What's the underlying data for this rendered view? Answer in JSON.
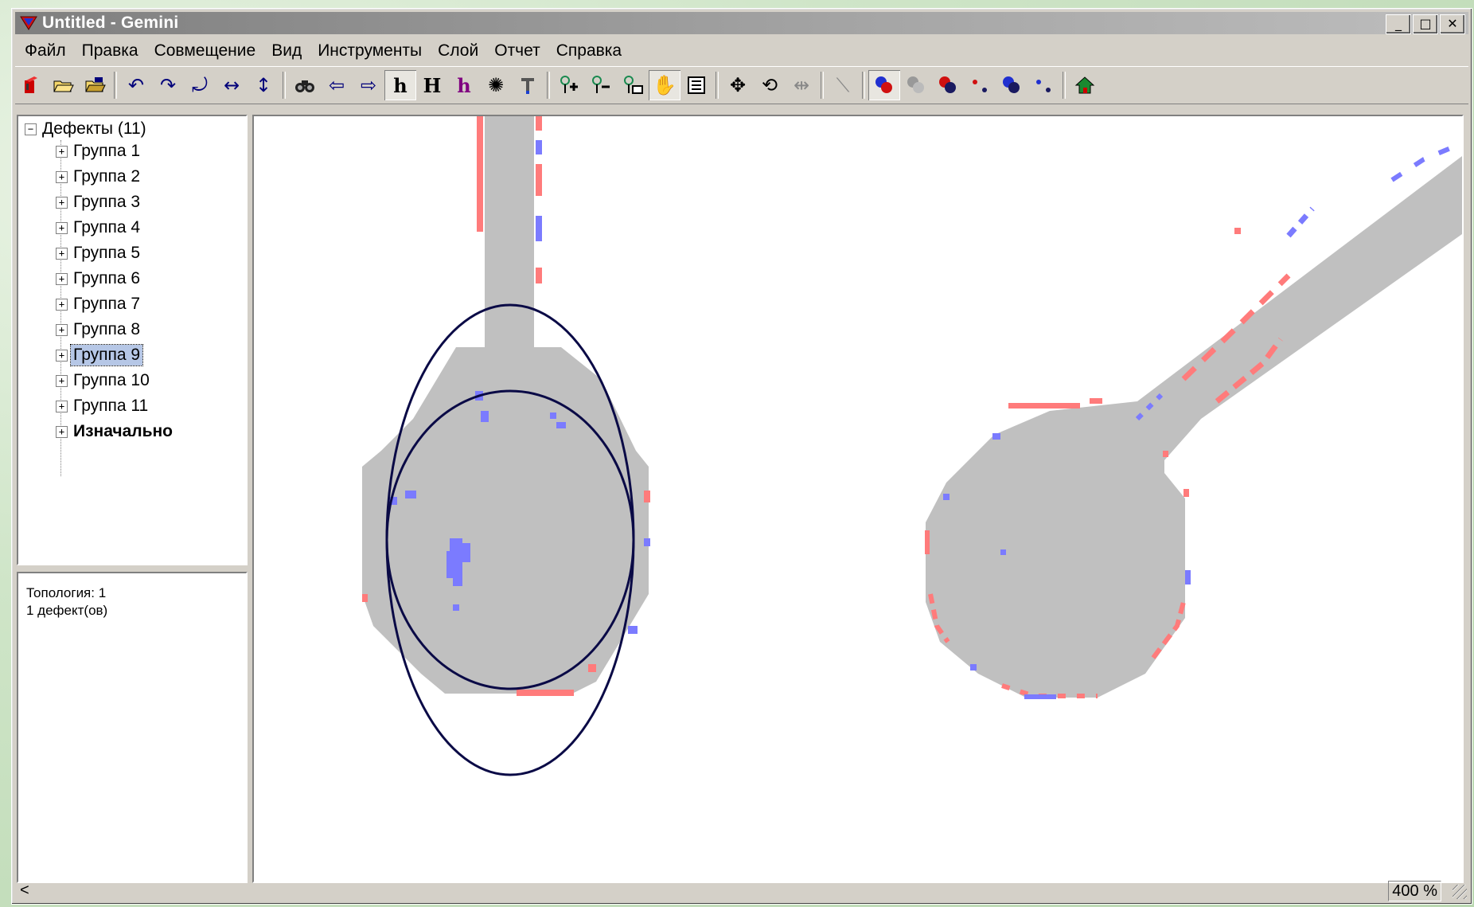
{
  "window": {
    "title": "Untitled - Gemini",
    "app_icon": "gemini-triangle-icon",
    "controls": {
      "minimize": "_",
      "maximize": "□",
      "close": "✕"
    }
  },
  "menu": [
    "Файл",
    "Правка",
    "Совмещение",
    "Вид",
    "Инструменты",
    "Слой",
    "Отчет",
    "Справка"
  ],
  "toolbar": {
    "icons": [
      "open-layout-icon",
      "open-folder-icon",
      "open-folder2-icon",
      "rotate-left-icon",
      "rotate-right-icon",
      "rotate-180-icon",
      "flip-horizontal-icon",
      "flip-vertical-icon",
      "binoculars-icon",
      "arrow-left-icon",
      "arrow-right-icon",
      "h-lower-icon",
      "h-upper-icon",
      "h-purple-icon",
      "sparkle-icon",
      "magnet-icon",
      "pin-add-icon",
      "pin-remove-icon",
      "pin-clear-icon",
      "hand-pan-icon",
      "list-icon",
      "move-icon",
      "rotate-tool-icon",
      "stretch-icon",
      "line-tool-icon",
      "defect-blue-red-icon",
      "defect-gray-icon",
      "defect-red-icon",
      "dots-red-icon",
      "defect-blue-icon",
      "dots-blue-icon",
      "home-icon"
    ],
    "glyphs": {
      "h_lower": "h",
      "h_upper": "H",
      "h_purple": "h"
    }
  },
  "tree": {
    "root": {
      "label": "Дефекты (11)",
      "expander": "−"
    },
    "groups": [
      {
        "label": "Группа 1"
      },
      {
        "label": "Группа 2"
      },
      {
        "label": "Группа 3"
      },
      {
        "label": "Группа 4"
      },
      {
        "label": "Группа 5"
      },
      {
        "label": "Группа 6"
      },
      {
        "label": "Группа 7"
      },
      {
        "label": "Группа 8"
      },
      {
        "label": "Группа 9"
      },
      {
        "label": "Группа 10"
      },
      {
        "label": "Группа 11"
      },
      {
        "label": "Изначально"
      }
    ],
    "expander": "+",
    "selected_index": 8
  },
  "info": {
    "line1": "Топология: 1",
    "line2": "1 дефект(ов)"
  },
  "status": {
    "left": "<",
    "zoom": "400 %"
  },
  "colors": {
    "copper": "#c0c0c0",
    "extra_defect": "#ff7b7b",
    "missing_defect": "#7b7bff",
    "marker": "#0a0a46",
    "selection": "#b6c7e6"
  }
}
